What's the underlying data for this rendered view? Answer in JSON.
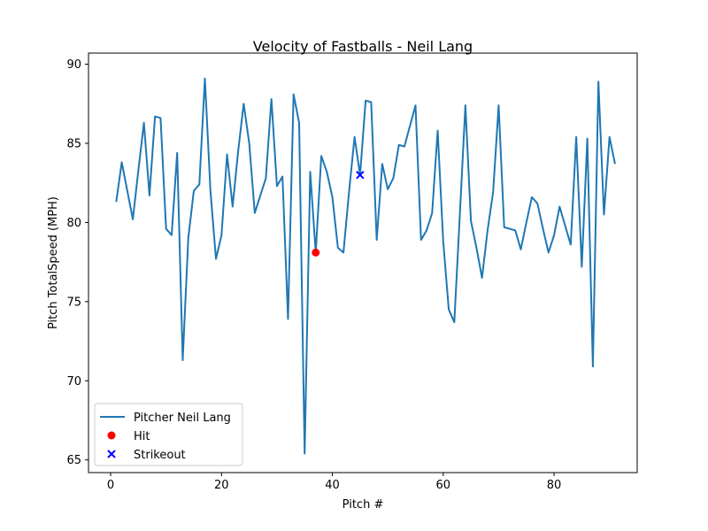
{
  "chart_data": {
    "type": "line",
    "title": "Velocity of Fastballs - Neil Lang",
    "xlabel": "Pitch #",
    "ylabel": "Pitch TotalSpeed (MPH)",
    "xlim": [
      -4,
      95
    ],
    "ylim": [
      64.2,
      90.7
    ],
    "xticks": [
      0,
      20,
      40,
      60,
      80
    ],
    "yticks": [
      65,
      70,
      75,
      80,
      85,
      90
    ],
    "grid": false,
    "legend_position": "lower-left",
    "series": [
      {
        "name": "Pitcher Neil Lang",
        "color": "#1f77b4",
        "x": [
          1,
          2,
          3,
          4,
          5,
          6,
          7,
          8,
          9,
          10,
          11,
          12,
          13,
          14,
          15,
          16,
          17,
          18,
          19,
          20,
          21,
          22,
          23,
          24,
          25,
          26,
          27,
          28,
          29,
          30,
          31,
          32,
          33,
          34,
          35,
          36,
          37,
          38,
          39,
          40,
          41,
          42,
          43,
          44,
          45,
          46,
          47,
          48,
          49,
          50,
          51,
          52,
          53,
          54,
          55,
          56,
          57,
          58,
          59,
          60,
          61,
          62,
          63,
          64,
          65,
          66,
          67,
          68,
          69,
          70,
          71,
          72,
          73,
          74,
          75,
          76,
          77,
          78,
          79,
          80,
          81,
          82,
          83,
          84,
          85,
          86,
          87,
          88,
          89,
          90,
          91
        ],
        "y": [
          81.3,
          83.8,
          82.0,
          80.2,
          83.3,
          86.3,
          81.7,
          86.7,
          86.6,
          79.6,
          79.2,
          84.4,
          71.3,
          79.0,
          82.0,
          82.4,
          89.1,
          82.0,
          77.7,
          79.2,
          84.3,
          81.0,
          84.5,
          87.5,
          85.0,
          80.6,
          81.7,
          82.8,
          87.8,
          82.3,
          82.9,
          73.9,
          88.1,
          86.3,
          65.4,
          83.2,
          78.1,
          84.2,
          83.2,
          81.6,
          78.4,
          78.1,
          81.9,
          85.4,
          83.0,
          87.7,
          87.6,
          78.9,
          83.7,
          82.1,
          82.8,
          84.9,
          84.8,
          86.1,
          87.4,
          78.9,
          79.5,
          80.6,
          85.8,
          78.8,
          74.5,
          73.7,
          80.5,
          87.4,
          80.1,
          78.4,
          76.5,
          79.5,
          81.9,
          87.4,
          79.7,
          79.6,
          79.5,
          78.3,
          80.0,
          81.6,
          81.2,
          79.6,
          78.1,
          79.2,
          81.0,
          79.8,
          78.6,
          85.4,
          77.2,
          85.3,
          70.9,
          88.9,
          80.5,
          85.4,
          83.7
        ]
      },
      {
        "name": "Hit",
        "type": "scatter",
        "marker": "circle",
        "color": "#ff0000",
        "x": [
          37
        ],
        "y": [
          78.1
        ]
      },
      {
        "name": "Strikeout",
        "type": "scatter",
        "marker": "x",
        "color": "#0000ff",
        "x": [
          45
        ],
        "y": [
          83.0
        ]
      }
    ]
  }
}
